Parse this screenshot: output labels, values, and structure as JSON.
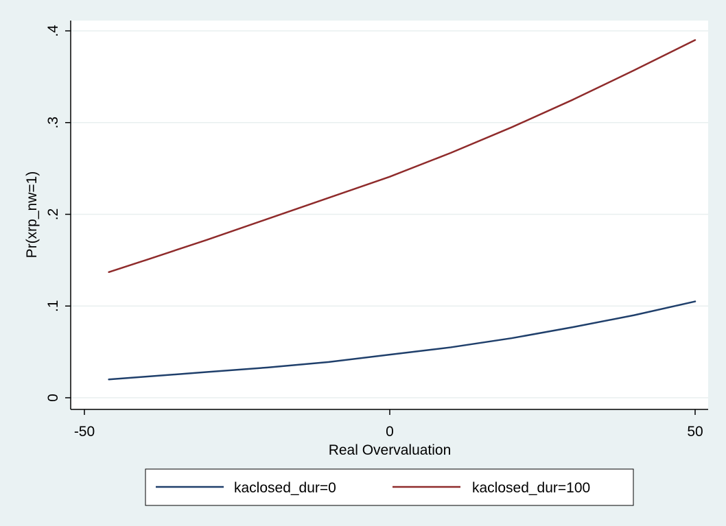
{
  "chart_data": {
    "type": "line",
    "title": "",
    "xlabel": "Real Overvaluation",
    "ylabel": "Pr(xrp_nw=1)",
    "xlim": [
      -50,
      50
    ],
    "ylim": [
      0,
      0.4
    ],
    "x_ticks": [
      {
        "value": -50,
        "label": "-50"
      },
      {
        "value": 0,
        "label": "0"
      },
      {
        "value": 50,
        "label": "50"
      }
    ],
    "y_ticks": [
      {
        "value": 0,
        "label": "0"
      },
      {
        "value": 0.1,
        "label": ".1"
      },
      {
        "value": 0.2,
        "label": ".2"
      },
      {
        "value": 0.3,
        "label": ".3"
      },
      {
        "value": 0.4,
        "label": ".4"
      }
    ],
    "grid": true,
    "legend_position": "bottom",
    "series": [
      {
        "name": "kaclosed_dur=0",
        "color": "#1f3f6b",
        "x": [
          -46,
          -40,
          -30,
          -20,
          -10,
          0,
          10,
          20,
          30,
          40,
          50
        ],
        "y": [
          0.02,
          0.023,
          0.028,
          0.033,
          0.039,
          0.047,
          0.055,
          0.065,
          0.077,
          0.09,
          0.105
        ]
      },
      {
        "name": "kaclosed_dur=100",
        "color": "#8f2b2b",
        "x": [
          -46,
          -40,
          -30,
          -20,
          -10,
          0,
          10,
          20,
          30,
          40,
          50
        ],
        "y": [
          0.137,
          0.15,
          0.172,
          0.195,
          0.218,
          0.241,
          0.267,
          0.295,
          0.325,
          0.357,
          0.39
        ]
      }
    ]
  },
  "legend": {
    "items": [
      {
        "label": "kaclosed_dur=0",
        "color": "#1f3f6b"
      },
      {
        "label": "kaclosed_dur=100",
        "color": "#8f2b2b"
      }
    ]
  }
}
